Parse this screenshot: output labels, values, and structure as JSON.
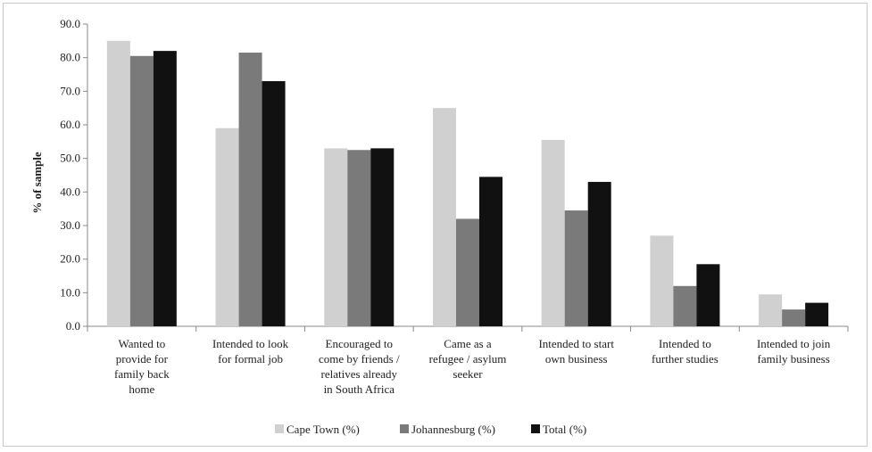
{
  "chart_data": {
    "type": "bar",
    "title": "",
    "xlabel": "",
    "ylabel": "% of sample",
    "ylim": [
      0,
      90
    ],
    "yticks": [
      "0.0",
      "10.0",
      "20.0",
      "30.0",
      "40.0",
      "50.0",
      "60.0",
      "70.0",
      "80.0",
      "90.0"
    ],
    "grid": false,
    "legend_position": "bottom",
    "categories": [
      [
        "Wanted to",
        "provide for",
        "family back",
        "home"
      ],
      [
        "Intended to look",
        "for formal job"
      ],
      [
        "Encouraged to",
        "come by friends /",
        "relatives already",
        "in South Africa"
      ],
      [
        "Came as a",
        "refugee / asylum",
        "seeker"
      ],
      [
        "Intended to start",
        "own business"
      ],
      [
        "Intended to",
        "further studies"
      ],
      [
        "Intended to join",
        "family business"
      ]
    ],
    "series": [
      {
        "name": "Cape Town (%)",
        "color": "#d0d0d0",
        "values": [
          85.0,
          59.0,
          53.0,
          65.0,
          55.5,
          27.0,
          9.5
        ]
      },
      {
        "name": "Johannesburg (%)",
        "color": "#7a7a7a",
        "values": [
          80.5,
          81.5,
          52.5,
          32.0,
          34.5,
          12.0,
          5.0
        ]
      },
      {
        "name": "Total (%)",
        "color": "#111111",
        "values": [
          82.0,
          73.0,
          53.0,
          44.5,
          43.0,
          18.5,
          7.0
        ]
      }
    ]
  }
}
